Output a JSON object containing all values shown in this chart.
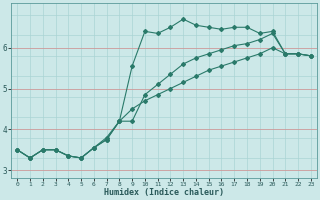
{
  "xlabel": "Humidex (Indice chaleur)",
  "ylabel": "",
  "bg_color": "#cce8e8",
  "grid_color_minor": "#aad4d4",
  "grid_color_major": "#cc9999",
  "line_color": "#2a7a6a",
  "xlim": [
    -0.5,
    23.5
  ],
  "ylim": [
    2.8,
    7.1
  ],
  "yticks": [
    3,
    4,
    5,
    6
  ],
  "xticks": [
    0,
    1,
    2,
    3,
    4,
    5,
    6,
    7,
    8,
    9,
    10,
    11,
    12,
    13,
    14,
    15,
    16,
    17,
    18,
    19,
    20,
    21,
    22,
    23
  ],
  "line1_x": [
    0,
    1,
    2,
    3,
    4,
    5,
    6,
    7,
    8,
    9,
    10,
    11,
    12,
    13,
    14,
    15,
    16,
    17,
    18,
    19,
    20,
    21,
    22,
    23
  ],
  "line1_y": [
    3.5,
    3.3,
    3.5,
    3.5,
    3.35,
    3.3,
    3.55,
    3.75,
    4.2,
    4.5,
    4.7,
    4.85,
    5.0,
    5.15,
    5.3,
    5.45,
    5.55,
    5.65,
    5.75,
    5.85,
    6.0,
    5.85,
    5.85,
    5.8
  ],
  "line2_x": [
    0,
    1,
    2,
    3,
    4,
    5,
    6,
    7,
    8,
    9,
    10,
    11,
    12,
    13,
    14,
    15,
    16,
    17,
    18,
    19,
    20,
    21,
    22,
    23
  ],
  "line2_y": [
    3.5,
    3.3,
    3.5,
    3.5,
    3.35,
    3.3,
    3.55,
    3.75,
    4.2,
    5.55,
    6.4,
    6.35,
    6.5,
    6.7,
    6.55,
    6.5,
    6.45,
    6.5,
    6.5,
    6.35,
    6.4,
    5.85,
    5.85,
    5.8
  ],
  "line3_x": [
    0,
    1,
    2,
    3,
    4,
    5,
    6,
    7,
    8,
    9,
    10,
    11,
    12,
    13,
    14,
    15,
    16,
    17,
    18,
    19,
    20,
    21,
    22,
    23
  ],
  "line3_y": [
    3.5,
    3.3,
    3.5,
    3.5,
    3.35,
    3.3,
    3.55,
    3.8,
    4.2,
    4.2,
    4.85,
    5.1,
    5.35,
    5.6,
    5.75,
    5.85,
    5.95,
    6.05,
    6.1,
    6.2,
    6.35,
    5.85,
    5.85,
    5.8
  ]
}
